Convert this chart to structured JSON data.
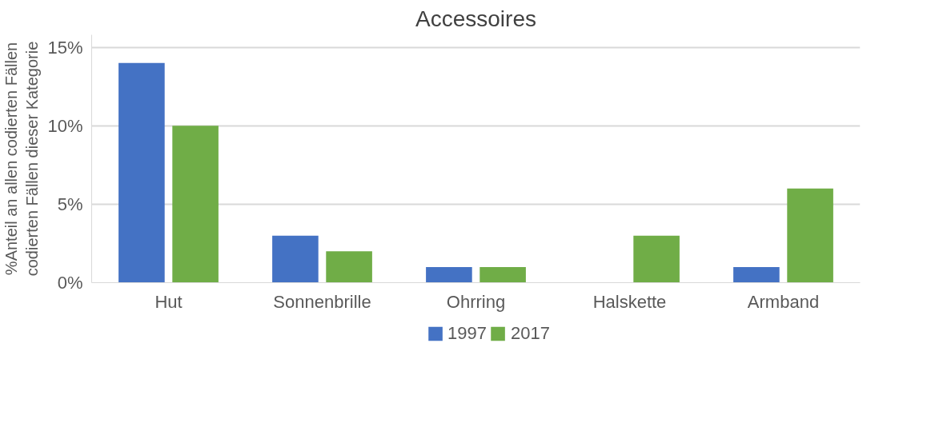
{
  "chart_data": {
    "type": "bar",
    "title": "Accessoires",
    "ylabel": "%Anteil an allen codierten Fällen\ncodierten Fällen dieser Kategorie",
    "categories": [
      "Hut",
      "Sonnenbrille",
      "Ohrring",
      "Halskette",
      "Armband"
    ],
    "series": [
      {
        "name": "1997",
        "color": "#4472c4",
        "values": [
          14,
          3,
          1,
          0,
          1
        ]
      },
      {
        "name": "2017",
        "color": "#70ad47",
        "values": [
          10,
          2,
          1,
          3,
          6
        ]
      }
    ],
    "ylim": [
      0,
      15.8
    ],
    "yticks": [
      {
        "value": 0,
        "label": "0%"
      },
      {
        "value": 5,
        "label": "5%"
      },
      {
        "value": 10,
        "label": "10%"
      },
      {
        "value": 15,
        "label": "15%"
      }
    ],
    "grid": "y",
    "legend": "bottom"
  }
}
